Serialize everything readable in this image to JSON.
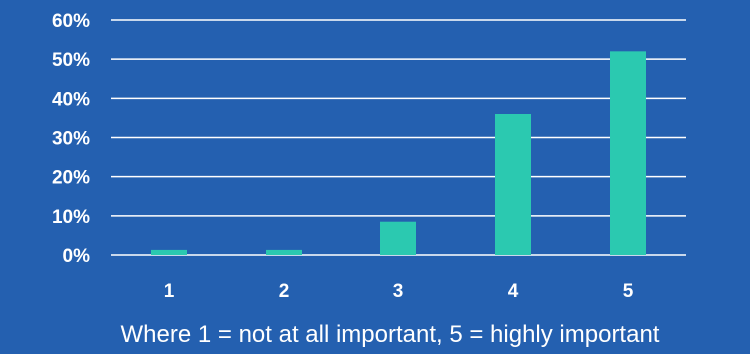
{
  "chart_data": {
    "type": "bar",
    "categories": [
      "1",
      "2",
      "3",
      "4",
      "5"
    ],
    "values": [
      1.3,
      1.3,
      8.5,
      36,
      52
    ],
    "ylim": [
      0,
      60
    ],
    "yticks": [
      0,
      10,
      20,
      30,
      40,
      50,
      60
    ],
    "ytick_labels": [
      "0%",
      "10%",
      "20%",
      "30%",
      "40%",
      "50%",
      "60%"
    ],
    "xlabel": "Where 1 = not at all important, 5 = highly important",
    "grid": true,
    "legend": "none"
  },
  "colors": {
    "background": "#2460B0",
    "bar": "#2BC9B0",
    "grid": "#FFFFFF",
    "text": "#FFFFFF"
  }
}
